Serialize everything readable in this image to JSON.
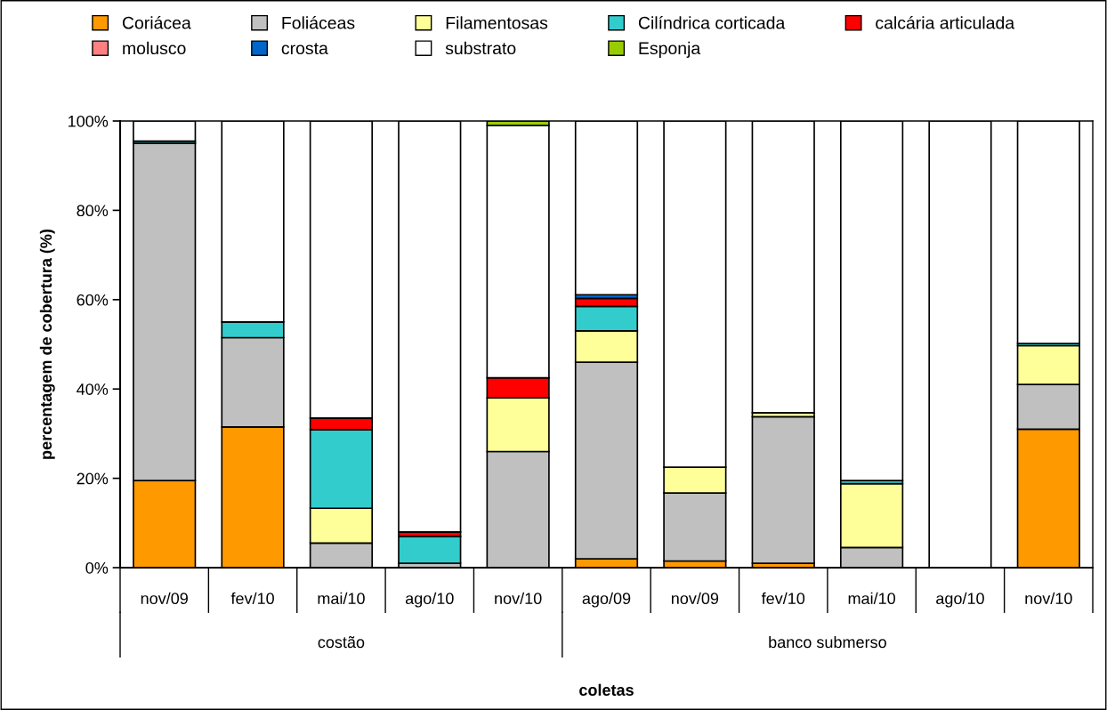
{
  "chart_data": {
    "type": "bar",
    "stacked": true,
    "xlabel": "coletas",
    "ylabel": "percentagem de cobertura (%)",
    "categories": [
      "nov/09",
      "fev/10",
      "mai/10",
      "ago/10",
      "nov/10",
      "ago/09",
      "nov/09",
      "fev/10",
      "mai/10",
      "ago/10",
      "nov/10"
    ],
    "annotations": [
      "costão",
      "banco submerso"
    ],
    "ylim": [
      0,
      100
    ],
    "yticks": [
      {
        "value": 0,
        "label": "0%"
      },
      {
        "value": 20,
        "label": "20%"
      },
      {
        "value": 40,
        "label": "40%"
      },
      {
        "value": 60,
        "label": "60%"
      },
      {
        "value": 80,
        "label": "80%"
      },
      {
        "value": 100,
        "label": "100%"
      }
    ],
    "legend": "top",
    "grid": false,
    "series": [
      {
        "name": "Coriácea",
        "color": "#ff9900",
        "values": [
          19.5,
          31.5,
          null,
          null,
          null,
          2,
          1.5,
          1,
          null,
          null,
          31
        ]
      },
      {
        "name": "Foliáceas",
        "color": "#c0c0c0",
        "values": [
          75.5,
          20,
          5.5,
          1,
          26,
          44,
          15.2,
          32.8,
          4.5,
          null,
          10
        ]
      },
      {
        "name": "Filamentosas",
        "color": "#ffff99",
        "values": [
          null,
          null,
          7.8,
          null,
          12,
          7,
          5.8,
          0.9,
          14.3,
          null,
          8.7
        ]
      },
      {
        "name": "Cilíndrica corticada",
        "color": "#33cccc",
        "values": [
          0.5,
          3.5,
          17.6,
          6,
          null,
          5.5,
          null,
          null,
          0.7,
          null,
          0.5
        ]
      },
      {
        "name": "calcária articulada",
        "color": "#ff0000",
        "values": [
          null,
          null,
          2.6,
          1,
          4.5,
          1.8,
          null,
          null,
          null,
          null,
          null
        ]
      },
      {
        "name": "molusco",
        "color": "#ff8080",
        "values": [
          null,
          null,
          null,
          null,
          null,
          null,
          null,
          null,
          null,
          null,
          null
        ]
      },
      {
        "name": "crosta",
        "color": "#0066cc",
        "values": [
          null,
          null,
          null,
          null,
          null,
          0.8,
          null,
          null,
          null,
          null,
          null
        ]
      },
      {
        "name": "substrato",
        "color": "#ffffff",
        "values": [
          4.5,
          45,
          66.5,
          92,
          56.5,
          38.9,
          77.5,
          65.3,
          80.5,
          100,
          49.8
        ]
      },
      {
        "name": "Esponja",
        "color": "#99cc00",
        "values": [
          null,
          null,
          null,
          null,
          1,
          null,
          null,
          null,
          null,
          null,
          null
        ]
      }
    ]
  }
}
